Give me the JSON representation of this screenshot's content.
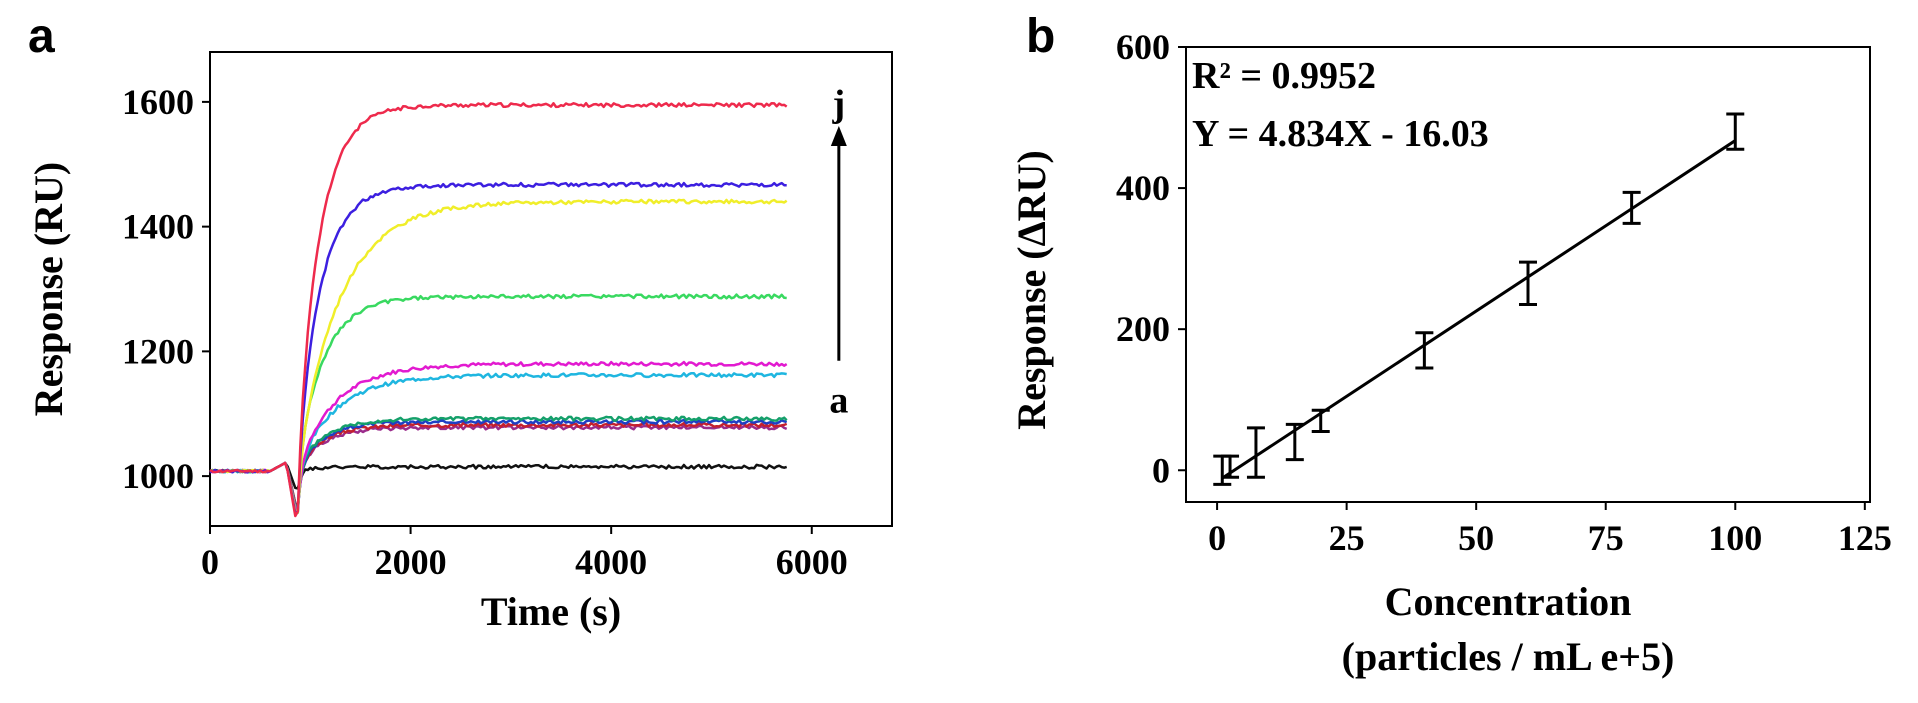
{
  "chart_data": [
    {
      "panel": "a",
      "type": "line",
      "xlabel": "Time (s)",
      "ylabel": "Response (RU)",
      "xlim": [
        0,
        6800
      ],
      "ylim": [
        920,
        1680
      ],
      "xticks": [
        0,
        2000,
        4000,
        6000
      ],
      "yticks": [
        1000,
        1200,
        1400,
        1600
      ],
      "arrow": {
        "from_label": "a",
        "to_label": "j",
        "x": 6270,
        "y_start": 1185,
        "y_end": 1555
      },
      "series": [
        {
          "name": "black",
          "color": "#111111",
          "plateau": 1015,
          "rise": 0,
          "tau": 300,
          "dip": 40
        },
        {
          "name": "purple",
          "color": "#9b2c8c",
          "plateau": 1078,
          "rise": 50,
          "tau": 250,
          "dip": 70
        },
        {
          "name": "red2",
          "color": "#c4202e",
          "plateau": 1082,
          "rise": 55,
          "tau": 250,
          "dip": 70
        },
        {
          "name": "blue2",
          "color": "#1f3fc4",
          "plateau": 1087,
          "rise": 60,
          "tau": 250,
          "dip": 75
        },
        {
          "name": "teal",
          "color": "#15a06a",
          "plateau": 1092,
          "rise": 65,
          "tau": 260,
          "dip": 75
        },
        {
          "name": "cyan",
          "color": "#1fb6e0",
          "plateau": 1162,
          "rise": 110,
          "tau": 380,
          "dip": 80
        },
        {
          "name": "magenta",
          "color": "#e21ad0",
          "plateau": 1180,
          "rise": 125,
          "tau": 380,
          "dip": 80
        },
        {
          "name": "green",
          "color": "#39d960",
          "plateau": 1288,
          "rise": 220,
          "tau": 260,
          "dip": 85
        },
        {
          "name": "yellow",
          "color": "#f0ee2a",
          "plateau": 1440,
          "rise": 330,
          "tau": 420,
          "dip": 85
        },
        {
          "name": "blue",
          "color": "#3c1fe0",
          "plateau": 1467,
          "rise": 440,
          "tau": 230,
          "dip": 90
        },
        {
          "name": "red",
          "color": "#ee2a4c",
          "plateau": 1595,
          "rise": 540,
          "tau": 220,
          "dip": 95
        }
      ]
    },
    {
      "panel": "b",
      "type": "scatter",
      "xlabel": "Concentration",
      "xlabel2": "(particles / mL e+5)",
      "ylabel": "Response (ΔRU)",
      "xlim": [
        -6,
        126
      ],
      "ylim": [
        -45,
        600
      ],
      "xticks": [
        0,
        25,
        50,
        75,
        100,
        125
      ],
      "yticks": [
        0,
        200,
        400,
        600
      ],
      "fit": {
        "slope": 4.834,
        "intercept": -16.03,
        "x_range": [
          1,
          100
        ]
      },
      "r2_text": "R² = 0.9952",
      "equation_text": "Y = 4.834X - 16.03",
      "points": [
        {
          "x": 1,
          "y": 0,
          "err": 20
        },
        {
          "x": 2.5,
          "y": 5,
          "err": 15
        },
        {
          "x": 7.5,
          "y": 25,
          "err": 35
        },
        {
          "x": 15,
          "y": 40,
          "err": 25
        },
        {
          "x": 20,
          "y": 70,
          "err": 15
        },
        {
          "x": 40,
          "y": 170,
          "err": 25
        },
        {
          "x": 60,
          "y": 265,
          "err": 30
        },
        {
          "x": 80,
          "y": 372,
          "err": 22
        },
        {
          "x": 100,
          "y": 480,
          "err": 25
        }
      ]
    }
  ]
}
